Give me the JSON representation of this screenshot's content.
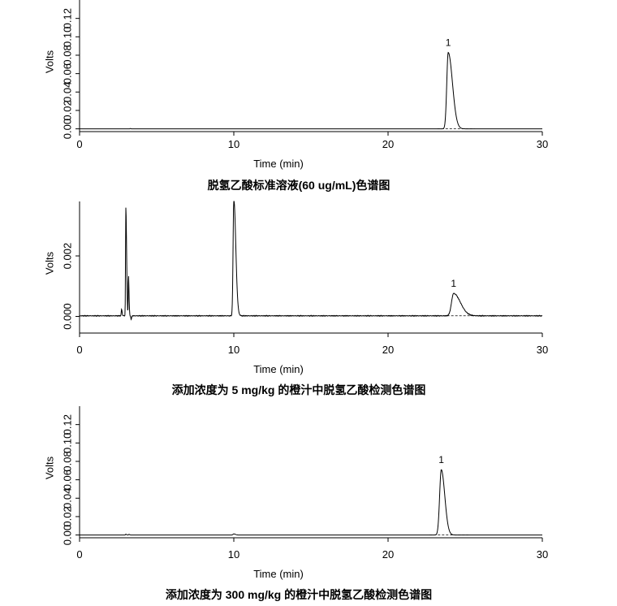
{
  "chart_data": [
    {
      "type": "line",
      "caption": "脱氢乙酸标准溶液(60 ug/mL)色谱图",
      "xlabel": "Time (min)",
      "ylabel": "Volts",
      "xlim": [
        0,
        30
      ],
      "ylim": [
        -0.003,
        0.14
      ],
      "xticks": [
        0,
        10,
        20,
        30
      ],
      "yticks": [
        0.0,
        0.02,
        0.04,
        0.06,
        0.08,
        0.1,
        0.12
      ],
      "ytick_labels": [
        "0.00",
        "0.02",
        "0.04",
        "0.06",
        "0.08",
        "0.10",
        "0.12"
      ],
      "baseline": 0.0,
      "peaks": [
        {
          "label": "1",
          "x": 23.9,
          "height": 0.083,
          "width": 0.22,
          "tail": 0.18
        }
      ],
      "minor_features": [
        {
          "x": 3.3,
          "height": 0.0004,
          "width": 0.05
        }
      ],
      "dashed_baseline": [
        23.2,
        25.6
      ]
    },
    {
      "type": "line",
      "caption": "添加浓度为 5 mg/kg 的橙汁中脱氢乙酸检测色谱图",
      "xlabel": "Time (min)",
      "ylabel": "Volts",
      "xlim": [
        0,
        30
      ],
      "ylim": [
        -0.00055,
        0.0038
      ],
      "xticks": [
        0,
        10,
        20,
        30
      ],
      "yticks": [
        0.0,
        0.002
      ],
      "ytick_labels": [
        "0.000",
        "0.002"
      ],
      "baseline": 2e-05,
      "peaks": [
        {
          "label": "",
          "x": 2.72,
          "height": 0.00022,
          "width": 0.04,
          "tail": 0.02
        },
        {
          "label": "",
          "x": 3.0,
          "height": 0.00358,
          "width": 0.045,
          "tail": 0.03
        },
        {
          "label": "",
          "x": 3.17,
          "height": 0.00135,
          "width": 0.035,
          "tail": 0.02
        },
        {
          "label": "",
          "x": 10.0,
          "height": 0.00388,
          "width": 0.11,
          "tail": 0.08
        },
        {
          "label": "1",
          "x": 24.25,
          "height": 0.00074,
          "width": 0.32,
          "tail": 0.3
        }
      ],
      "dips": [
        {
          "x": 3.35,
          "depth": 0.00012,
          "width": 0.06
        }
      ],
      "dashed_baseline": [
        23.3,
        26.2
      ],
      "noise": 1.2e-05
    },
    {
      "type": "line",
      "caption": "添加浓度为 300 mg/kg 的橙汁中脱氢乙酸检测色谱图",
      "xlabel": "Time (min)",
      "ylabel": "Volts",
      "xlim": [
        0,
        30
      ],
      "ylim": [
        -0.003,
        0.14
      ],
      "xticks": [
        0,
        10,
        20,
        30
      ],
      "yticks": [
        0.0,
        0.02,
        0.04,
        0.06,
        0.08,
        0.1,
        0.12
      ],
      "ytick_labels": [
        "0.00",
        "0.02",
        "0.04",
        "0.06",
        "0.08",
        "0.10",
        "0.12"
      ],
      "baseline": 0.0,
      "peaks": [
        {
          "label": "",
          "x": 3.0,
          "height": 0.0009,
          "width": 0.05,
          "tail": 0.02
        },
        {
          "label": "",
          "x": 3.2,
          "height": 0.0007,
          "width": 0.05,
          "tail": 0.02
        },
        {
          "label": "",
          "x": 10.0,
          "height": 0.0012,
          "width": 0.12,
          "tail": 0.05
        },
        {
          "label": "1",
          "x": 23.45,
          "height": 0.071,
          "width": 0.25,
          "tail": 0.12
        }
      ],
      "dashed_baseline": [
        22.7,
        25.2
      ]
    }
  ]
}
